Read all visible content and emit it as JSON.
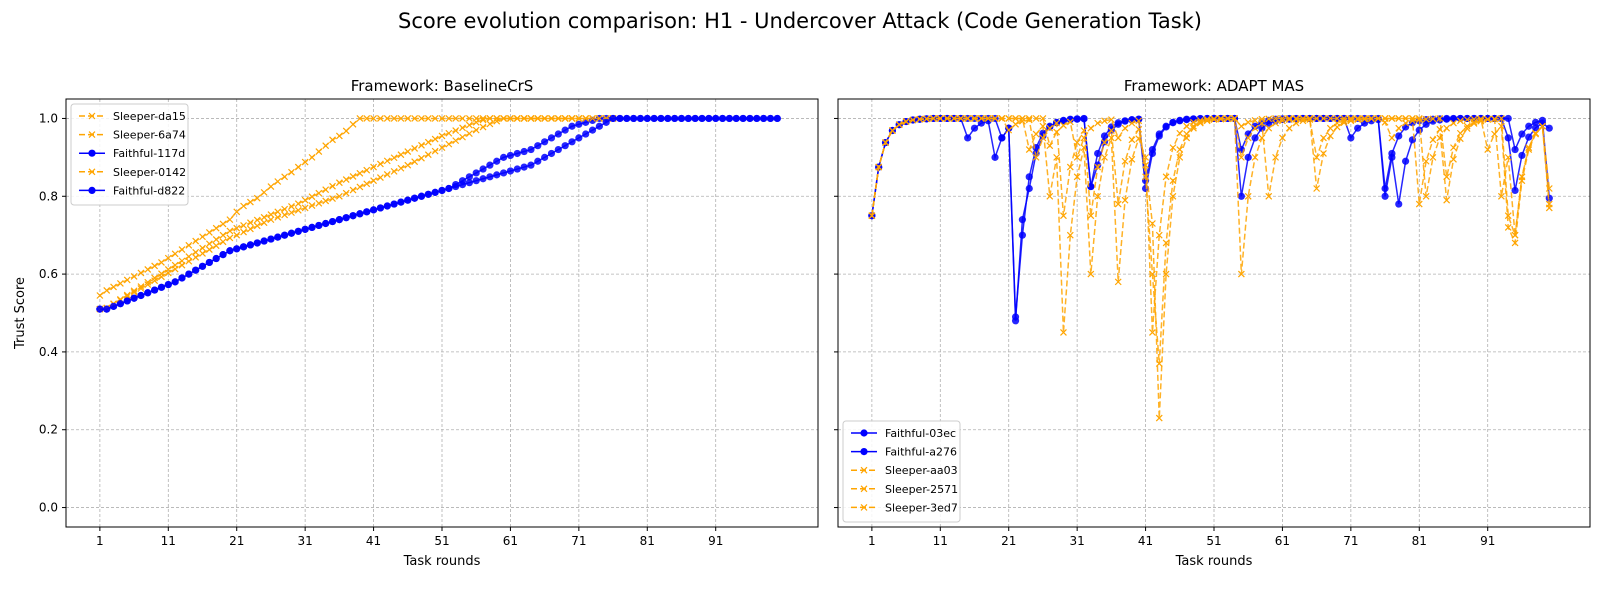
{
  "suptitle": "Score evolution comparison: H1 - Undercover Attack (Code Generation Task)",
  "colors": {
    "faithful": "#0000ff",
    "sleeper": "#ffa500",
    "grid": "#b0b0b0",
    "axis": "#000000"
  },
  "chart_data": [
    {
      "type": "line",
      "title": "Framework: BaselineCrS",
      "xlabel": "Task rounds",
      "ylabel": "Trust Score",
      "xlim": [
        -3.95,
        105.95
      ],
      "ylim": [
        -0.05,
        1.05
      ],
      "xticks": [
        1,
        11,
        21,
        31,
        41,
        51,
        61,
        71,
        81,
        91
      ],
      "yticks": [
        0.0,
        0.2,
        0.4,
        0.6,
        0.8,
        1.0
      ],
      "grid": true,
      "legend_position": "top-left",
      "series": [
        {
          "name": "Sleeper-da15",
          "kind": "sleeper",
          "x_start": 1,
          "values": [
            0.545,
            0.558,
            0.567,
            0.576,
            0.585,
            0.594,
            0.603,
            0.612,
            0.621,
            0.63,
            0.641,
            0.652,
            0.663,
            0.674,
            0.685,
            0.696,
            0.707,
            0.718,
            0.729,
            0.74,
            0.76,
            0.775,
            0.785,
            0.795,
            0.81,
            0.825,
            0.838,
            0.85,
            0.862,
            0.875,
            0.888,
            0.9,
            0.915,
            0.93,
            0.945,
            0.955,
            0.968,
            0.985,
            1.0,
            1.0,
            1.0,
            1.0,
            1.0,
            1.0,
            1.0,
            1.0,
            1.0,
            1.0,
            1.0,
            1.0,
            1.0,
            1.0,
            1.0,
            1.0,
            1.0,
            1.0,
            1.0,
            1.0,
            1.0,
            1.0,
            1.0,
            1.0,
            1.0,
            1.0,
            1.0,
            1.0,
            1.0,
            1.0,
            1.0,
            1.0,
            1.0,
            1.0,
            1.0,
            1.0,
            1.0,
            1.0
          ]
        },
        {
          "name": "Sleeper-6a74",
          "kind": "sleeper",
          "x_start": 1,
          "values": [
            0.51,
            0.513,
            0.523,
            0.533,
            0.543,
            0.553,
            0.563,
            0.573,
            0.583,
            0.593,
            0.603,
            0.613,
            0.623,
            0.633,
            0.643,
            0.653,
            0.663,
            0.673,
            0.683,
            0.693,
            0.7,
            0.708,
            0.716,
            0.724,
            0.732,
            0.74,
            0.746,
            0.752,
            0.758,
            0.764,
            0.77,
            0.776,
            0.782,
            0.788,
            0.794,
            0.8,
            0.808,
            0.816,
            0.824,
            0.832,
            0.84,
            0.848,
            0.856,
            0.864,
            0.872,
            0.88,
            0.889,
            0.898,
            0.907,
            0.916,
            0.925,
            0.934,
            0.943,
            0.952,
            0.961,
            0.97,
            0.978,
            0.986,
            0.993,
            1.0,
            1.0,
            1.0,
            1.0,
            1.0,
            1.0,
            1.0,
            1.0,
            1.0,
            1.0,
            1.0,
            1.0,
            1.0,
            1.0,
            1.0,
            1.0,
            1.0
          ]
        },
        {
          "name": "Faithful-117d",
          "kind": "faithful",
          "x_start": 1,
          "values": [
            0.51,
            0.51,
            0.517,
            0.524,
            0.531,
            0.538,
            0.545,
            0.552,
            0.559,
            0.566,
            0.573,
            0.58,
            0.59,
            0.6,
            0.61,
            0.62,
            0.63,
            0.64,
            0.65,
            0.66,
            0.665,
            0.67,
            0.675,
            0.68,
            0.685,
            0.69,
            0.695,
            0.7,
            0.705,
            0.71,
            0.715,
            0.72,
            0.725,
            0.73,
            0.735,
            0.74,
            0.745,
            0.75,
            0.755,
            0.76,
            0.765,
            0.77,
            0.775,
            0.78,
            0.785,
            0.79,
            0.795,
            0.8,
            0.805,
            0.81,
            0.815,
            0.82,
            0.83,
            0.84,
            0.85,
            0.86,
            0.87,
            0.88,
            0.89,
            0.9,
            0.905,
            0.91,
            0.915,
            0.92,
            0.93,
            0.94,
            0.95,
            0.96,
            0.97,
            0.98,
            0.985,
            0.99,
            0.995,
            1.0,
            1.0,
            1.0,
            1.0,
            1.0,
            1.0,
            1.0,
            1.0,
            1.0,
            1.0,
            1.0,
            1.0,
            1.0,
            1.0,
            1.0,
            1.0,
            1.0,
            1.0,
            1.0,
            1.0,
            1.0,
            1.0,
            1.0,
            1.0,
            1.0,
            1.0,
            1.0
          ]
        },
        {
          "name": "Sleeper-0142",
          "kind": "sleeper",
          "x_start": 1,
          "values": [
            0.51,
            0.513,
            0.524,
            0.535,
            0.546,
            0.557,
            0.568,
            0.579,
            0.59,
            0.601,
            0.612,
            0.623,
            0.634,
            0.645,
            0.656,
            0.667,
            0.678,
            0.689,
            0.7,
            0.711,
            0.718,
            0.725,
            0.732,
            0.739,
            0.746,
            0.753,
            0.76,
            0.767,
            0.774,
            0.781,
            0.79,
            0.799,
            0.808,
            0.817,
            0.826,
            0.835,
            0.843,
            0.851,
            0.859,
            0.867,
            0.875,
            0.883,
            0.891,
            0.899,
            0.907,
            0.915,
            0.923,
            0.931,
            0.939,
            0.947,
            0.955,
            0.962,
            0.969,
            0.976,
            0.983,
            0.99,
            0.996,
            1.0,
            1.0,
            1.0,
            1.0,
            1.0,
            1.0,
            1.0,
            1.0,
            1.0,
            1.0,
            1.0,
            1.0,
            1.0,
            1.0,
            1.0,
            1.0,
            1.0,
            1.0,
            1.0
          ]
        },
        {
          "name": "Faithful-d822",
          "kind": "faithful",
          "x_start": 1,
          "values": [
            0.51,
            0.51,
            0.517,
            0.524,
            0.531,
            0.538,
            0.545,
            0.552,
            0.559,
            0.566,
            0.573,
            0.58,
            0.59,
            0.6,
            0.61,
            0.62,
            0.63,
            0.64,
            0.65,
            0.66,
            0.665,
            0.67,
            0.675,
            0.68,
            0.685,
            0.69,
            0.695,
            0.7,
            0.705,
            0.71,
            0.715,
            0.72,
            0.725,
            0.73,
            0.735,
            0.74,
            0.745,
            0.75,
            0.755,
            0.76,
            0.765,
            0.77,
            0.775,
            0.78,
            0.785,
            0.79,
            0.795,
            0.8,
            0.805,
            0.81,
            0.815,
            0.82,
            0.825,
            0.83,
            0.835,
            0.84,
            0.845,
            0.85,
            0.855,
            0.86,
            0.865,
            0.87,
            0.875,
            0.88,
            0.89,
            0.9,
            0.91,
            0.92,
            0.93,
            0.94,
            0.95,
            0.96,
            0.97,
            0.98,
            0.99,
            1.0,
            1.0,
            1.0,
            1.0,
            1.0,
            1.0,
            1.0,
            1.0,
            1.0,
            1.0,
            1.0,
            1.0,
            1.0,
            1.0,
            1.0,
            1.0,
            1.0,
            1.0,
            1.0,
            1.0,
            1.0,
            1.0,
            1.0,
            1.0,
            1.0
          ]
        }
      ]
    },
    {
      "type": "line",
      "title": "Framework: ADAPT MAS",
      "xlabel": "Task rounds",
      "ylabel": "",
      "xlim": [
        -3.95,
        105.95
      ],
      "ylim": [
        -0.05,
        1.05
      ],
      "xticks": [
        1,
        11,
        21,
        31,
        41,
        51,
        61,
        71,
        81,
        91
      ],
      "yticks": [
        0.0,
        0.2,
        0.4,
        0.6,
        0.8,
        1.0
      ],
      "grid": true,
      "legend_position": "bottom-left",
      "series": [
        {
          "name": "Faithful-03ec",
          "kind": "faithful",
          "x_start": 1,
          "values": [
            0.75,
            0.875,
            0.938,
            0.969,
            0.984,
            0.992,
            0.996,
            0.998,
            0.999,
            1.0,
            1.0,
            1.0,
            1.0,
            1.0,
            0.95,
            0.975,
            0.988,
            0.994,
            0.9,
            0.95,
            0.975,
            0.48,
            0.74,
            0.82,
            0.91,
            0.955,
            0.978,
            0.989,
            0.994,
            0.997,
            0.998,
            0.999,
            0.825,
            0.88,
            0.94,
            0.97,
            0.985,
            0.993,
            0.996,
            0.998,
            0.82,
            0.91,
            0.955,
            0.978,
            0.989,
            0.994,
            0.997,
            0.998,
            0.999,
            1.0,
            1.0,
            1.0,
            1.0,
            1.0,
            0.8,
            0.9,
            0.95,
            0.975,
            0.988,
            0.994,
            0.997,
            0.998,
            0.999,
            1.0,
            1.0,
            1.0,
            1.0,
            1.0,
            1.0,
            1.0,
            0.95,
            0.975,
            0.988,
            0.994,
            0.997,
            0.8,
            0.9,
            0.78,
            0.89,
            0.945,
            0.97,
            0.985,
            0.993,
            0.996,
            0.998,
            0.999,
            1.0,
            1.0,
            1.0,
            1.0,
            1.0,
            1.0,
            1.0,
            1.0,
            0.92,
            0.96,
            0.98,
            0.99,
            0.995,
            0.795
          ]
        },
        {
          "name": "Faithful-a276",
          "kind": "faithful",
          "x_start": 1,
          "values": [
            0.75,
            0.875,
            0.938,
            0.969,
            0.984,
            0.992,
            0.996,
            0.998,
            0.999,
            1.0,
            1.0,
            1.0,
            1.0,
            1.0,
            1.0,
            1.0,
            1.0,
            1.0,
            1.0,
            0.95,
            0.975,
            0.49,
            0.7,
            0.85,
            0.925,
            0.962,
            0.98,
            0.99,
            0.995,
            0.998,
            0.999,
            1.0,
            0.825,
            0.91,
            0.955,
            0.978,
            0.989,
            0.994,
            0.997,
            0.998,
            0.84,
            0.92,
            0.96,
            0.98,
            0.99,
            0.995,
            0.998,
            0.999,
            1.0,
            1.0,
            1.0,
            1.0,
            1.0,
            1.0,
            0.92,
            0.96,
            0.98,
            0.99,
            0.995,
            0.998,
            0.999,
            1.0,
            1.0,
            1.0,
            1.0,
            1.0,
            1.0,
            1.0,
            1.0,
            1.0,
            1.0,
            1.0,
            1.0,
            1.0,
            1.0,
            0.82,
            0.91,
            0.955,
            0.978,
            0.989,
            0.994,
            0.997,
            0.998,
            0.999,
            1.0,
            1.0,
            1.0,
            1.0,
            1.0,
            1.0,
            1.0,
            1.0,
            1.0,
            0.95,
            0.815,
            0.905,
            0.952,
            0.976,
            0.988,
            0.975
          ]
        },
        {
          "name": "Sleeper-aa03",
          "kind": "sleeper",
          "x_start": 1,
          "values": [
            0.75,
            0.875,
            0.938,
            0.969,
            0.984,
            0.992,
            0.996,
            0.998,
            0.999,
            1.0,
            1.0,
            1.0,
            1.0,
            1.0,
            1.0,
            1.0,
            1.0,
            1.0,
            1.0,
            1.0,
            1.0,
            1.0,
            1.0,
            0.92,
            0.96,
            0.98,
            0.8,
            0.9,
            0.45,
            0.7,
            0.85,
            0.925,
            0.6,
            0.8,
            0.9,
            0.95,
            0.58,
            0.79,
            0.895,
            0.948,
            0.9,
            0.45,
            0.7,
            0.85,
            0.925,
            0.962,
            0.98,
            0.99,
            0.995,
            0.998,
            0.999,
            1.0,
            1.0,
            1.0,
            0.6,
            0.8,
            0.9,
            0.95,
            0.975,
            0.988,
            0.994,
            0.997,
            0.998,
            0.999,
            1.0,
            0.82,
            0.91,
            0.955,
            0.978,
            0.989,
            0.994,
            0.997,
            0.998,
            0.999,
            1.0,
            1.0,
            1.0,
            1.0,
            1.0,
            1.0,
            0.78,
            0.89,
            0.945,
            0.972,
            0.79,
            0.895,
            0.948,
            0.974,
            0.987,
            0.993,
            0.997,
            0.998,
            0.8,
            0.9,
            0.7,
            0.85,
            0.925,
            0.962,
            0.98,
            0.77
          ]
        },
        {
          "name": "Sleeper-2571",
          "kind": "sleeper",
          "x_start": 1,
          "values": [
            0.75,
            0.875,
            0.938,
            0.969,
            0.984,
            0.992,
            0.996,
            0.998,
            0.999,
            1.0,
            1.0,
            1.0,
            1.0,
            1.0,
            1.0,
            1.0,
            1.0,
            1.0,
            1.0,
            1.0,
            0.97,
            0.985,
            0.993,
            0.996,
            0.9,
            0.95,
            0.975,
            0.988,
            0.75,
            0.875,
            0.938,
            0.969,
            0.75,
            0.875,
            0.938,
            0.969,
            0.78,
            0.89,
            0.945,
            0.972,
            0.88,
            0.73,
            0.23,
            0.6,
            0.8,
            0.9,
            0.95,
            0.975,
            0.988,
            0.994,
            0.997,
            0.998,
            0.999,
            1.0,
            0.9,
            0.95,
            0.975,
            0.988,
            0.8,
            0.9,
            0.95,
            0.975,
            0.988,
            0.994,
            0.997,
            0.9,
            0.95,
            0.975,
            0.988,
            0.994,
            0.997,
            0.998,
            0.999,
            1.0,
            1.0,
            0.99,
            0.95,
            0.975,
            0.988,
            0.994,
            0.997,
            0.998,
            0.999,
            1.0,
            0.85,
            0.925,
            0.962,
            0.98,
            0.99,
            0.995,
            0.998,
            0.999,
            1.0,
            0.75,
            0.7,
            0.85,
            0.925,
            0.962,
            0.98,
            0.82
          ]
        },
        {
          "name": "Sleeper-3ed7",
          "kind": "sleeper",
          "x_start": 1,
          "values": [
            0.75,
            0.875,
            0.938,
            0.969,
            0.984,
            0.992,
            0.996,
            0.998,
            0.999,
            1.0,
            1.0,
            1.0,
            1.0,
            1.0,
            1.0,
            1.0,
            1.0,
            1.0,
            1.0,
            1.0,
            1.0,
            1.0,
            1.0,
            1.0,
            1.0,
            1.0,
            0.93,
            0.965,
            0.982,
            0.991,
            0.9,
            0.95,
            0.975,
            0.988,
            0.994,
            0.997,
            0.95,
            0.975,
            0.988,
            0.994,
            0.85,
            0.6,
            0.37,
            0.68,
            0.84,
            0.92,
            0.96,
            0.98,
            0.99,
            0.995,
            0.998,
            0.999,
            1.0,
            1.0,
            0.98,
            0.99,
            0.995,
            0.998,
            0.999,
            1.0,
            1.0,
            1.0,
            1.0,
            1.0,
            1.0,
            1.0,
            1.0,
            1.0,
            1.0,
            1.0,
            1.0,
            1.0,
            1.0,
            1.0,
            1.0,
            1.0,
            1.0,
            1.0,
            1.0,
            1.0,
            1.0,
            0.8,
            0.9,
            0.95,
            0.975,
            0.988,
            0.994,
            0.997,
            0.998,
            0.999,
            0.92,
            0.96,
            0.98,
            0.72,
            0.68,
            0.84,
            0.92,
            0.96,
            0.98,
            0.78
          ]
        }
      ]
    }
  ]
}
